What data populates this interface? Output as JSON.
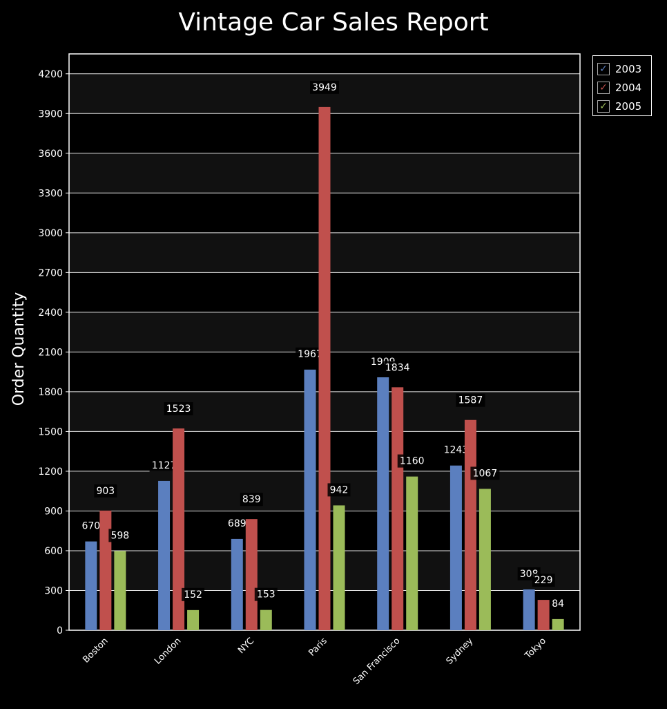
{
  "chart_data": {
    "type": "bar",
    "title": "Vintage Car Sales Report",
    "xlabel": "",
    "ylabel": "Order Quantity",
    "ylim": [
      0,
      4200
    ],
    "yticks": [
      0,
      300,
      600,
      900,
      1200,
      1500,
      1800,
      2100,
      2400,
      2700,
      3000,
      3300,
      3600,
      3900,
      4200
    ],
    "categories": [
      "Boston",
      "London",
      "NYC",
      "Paris",
      "San Francisco",
      "Sydney",
      "Tokyo"
    ],
    "series": [
      {
        "name": "2003",
        "color": "#5b7fbf",
        "values": [
          670,
          1127,
          689,
          1967,
          1909,
          1243,
          308
        ]
      },
      {
        "name": "2004",
        "color": "#c0504d",
        "values": [
          903,
          1523,
          839,
          3949,
          1834,
          1587,
          229
        ]
      },
      {
        "name": "2005",
        "color": "#9bbb59",
        "values": [
          598,
          152,
          153,
          942,
          1160,
          1067,
          84
        ]
      }
    ],
    "grid": true,
    "legend_position": "top-right"
  }
}
